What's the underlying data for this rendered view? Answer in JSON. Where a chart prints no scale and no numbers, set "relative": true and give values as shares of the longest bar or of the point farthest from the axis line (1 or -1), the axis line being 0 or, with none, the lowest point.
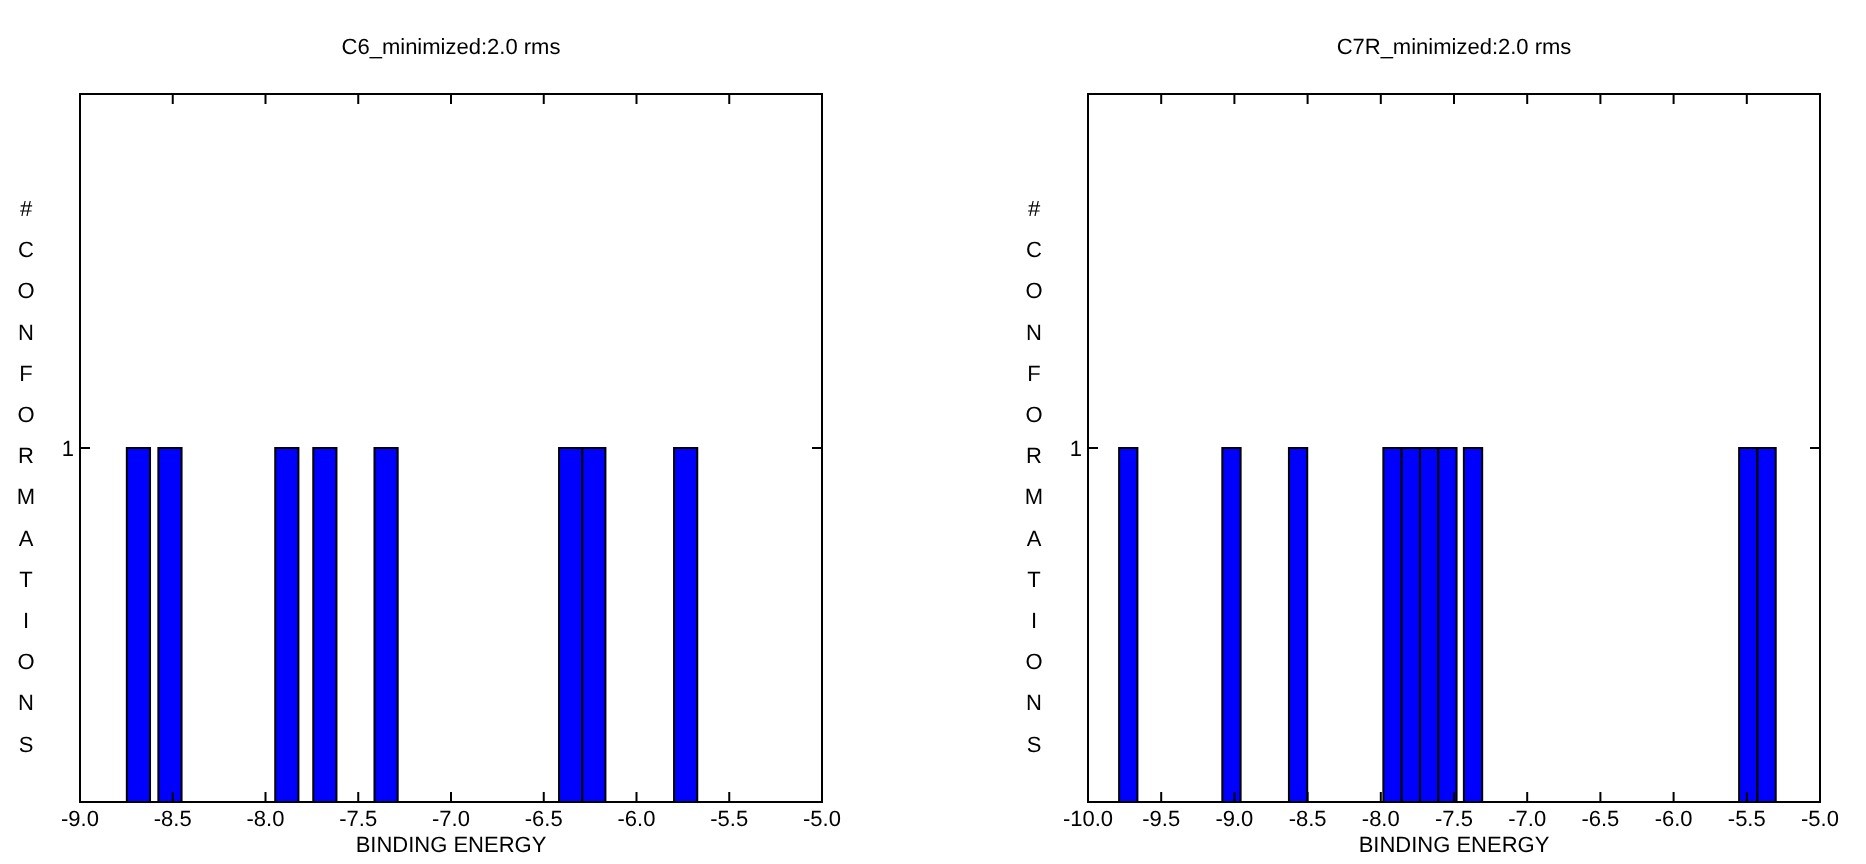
{
  "chart_data": [
    {
      "type": "bar",
      "title": "C6_minimized:2.0 rms",
      "xlabel": "BINDING ENERGY",
      "ylabel": "# CONFORMATIONS",
      "color": "#0000ff",
      "relative": true,
      "annotations": [
        "1"
      ],
      "x": [
        -8.685,
        -8.515,
        -7.885,
        -7.68,
        -7.35,
        -6.355,
        -6.23,
        -5.735
      ],
      "values": [
        1,
        1,
        1,
        1,
        1,
        1,
        1,
        1
      ],
      "xlim": [
        -9,
        -5
      ],
      "xticks": [
        {
          "value": -9,
          "label": "-9.0"
        },
        {
          "value": -8.5,
          "label": "-8.5"
        },
        {
          "value": -8,
          "label": "-8.0"
        },
        {
          "value": -7.5,
          "label": "-7.5"
        },
        {
          "value": -7,
          "label": "-7.0"
        },
        {
          "value": -6.5,
          "label": "-6.5"
        },
        {
          "value": -6,
          "label": "-6.0"
        },
        {
          "value": -5.5,
          "label": "-5.5"
        },
        {
          "value": -5,
          "label": "-5.0"
        }
      ]
    },
    {
      "type": "bar",
      "title": "C7R_minimized:2.0 rms",
      "xlabel": "BINDING ENERGY",
      "ylabel": "# CONFORMATIONS",
      "color": "#0000ff",
      "relative": true,
      "annotations": [
        "1"
      ],
      "x": [
        -9.725,
        -9.02,
        -8.565,
        -7.92,
        -7.795,
        -7.67,
        -7.545,
        -7.37,
        -5.49,
        -5.365
      ],
      "values": [
        1,
        1,
        1,
        1,
        1,
        1,
        1,
        1,
        1,
        1
      ],
      "xlim": [
        -10,
        -5
      ],
      "xticks": [
        {
          "value": -10,
          "label": "-10.0"
        },
        {
          "value": -9.5,
          "label": "-9.5"
        },
        {
          "value": -9,
          "label": "-9.0"
        },
        {
          "value": -8.5,
          "label": "-8.5"
        },
        {
          "value": -8,
          "label": "-8.0"
        },
        {
          "value": -7.5,
          "label": "-7.5"
        },
        {
          "value": -7,
          "label": "-7.0"
        },
        {
          "value": -6.5,
          "label": "-6.5"
        },
        {
          "value": -6,
          "label": "-6.0"
        },
        {
          "value": -5.5,
          "label": "-5.5"
        },
        {
          "value": -5,
          "label": "-5.0"
        }
      ]
    }
  ]
}
